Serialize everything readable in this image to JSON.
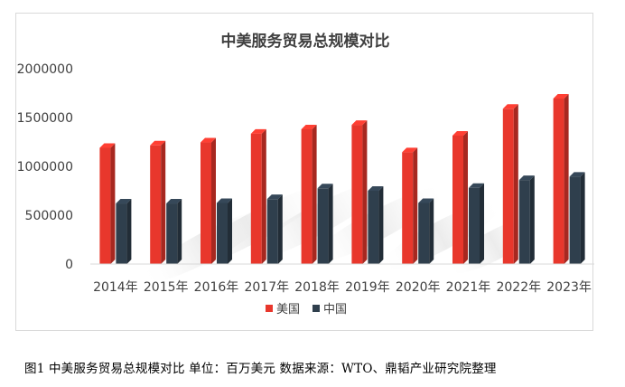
{
  "caption": "图1  中美服务贸易总规模对比    单位：百万美元  数据来源：WTO、鼎韬产业研究院整理",
  "chart_data": {
    "type": "bar",
    "title": "中美服务贸易总规模对比",
    "xlabel": "",
    "ylabel": "",
    "categories": [
      "2014年",
      "2015年",
      "2016年",
      "2017年",
      "2018年",
      "2019年",
      "2020年",
      "2021年",
      "2022年",
      "2023年"
    ],
    "series": [
      {
        "name": "美国",
        "color": "#e8372c",
        "values": [
          1190000,
          1215000,
          1245000,
          1335000,
          1380000,
          1425000,
          1145000,
          1315000,
          1590000,
          1695000
        ]
      },
      {
        "name": "中国",
        "color": "#2f3f4d",
        "values": [
          620000,
          620000,
          625000,
          665000,
          775000,
          750000,
          625000,
          780000,
          860000,
          895000
        ]
      }
    ],
    "ylim": [
      0,
      2000000
    ],
    "yticks": [
      0,
      500000,
      1000000,
      1500000,
      2000000
    ],
    "ytick_labels": [
      "0",
      "500000",
      "1000000",
      "1500000",
      "2000000"
    ],
    "grid": false,
    "legend_position": "bottom"
  }
}
